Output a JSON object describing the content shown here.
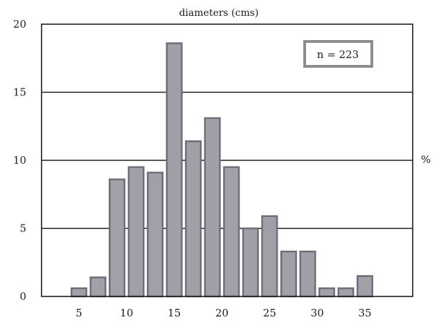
{
  "chart_data": {
    "type": "bar",
    "title": "diameters (cms)",
    "ylabel": "%",
    "xlabel": "",
    "annotation": "n = 223",
    "x_ticks": [
      5,
      10,
      15,
      20,
      25,
      30,
      35
    ],
    "y_ticks": [
      0,
      5,
      10,
      15,
      20
    ],
    "xlim": [
      0,
      40
    ],
    "ylim": [
      0,
      20
    ],
    "grid": true,
    "bar_color": "#a0a0a8",
    "bar_edge_color": "#6e6e76",
    "categories": [
      5,
      7,
      9,
      11,
      13,
      15,
      17,
      19,
      21,
      23,
      25,
      27,
      29,
      31,
      33,
      35
    ],
    "values": [
      0.6,
      1.4,
      8.6,
      9.5,
      9.1,
      18.6,
      11.4,
      13.1,
      9.5,
      5.0,
      5.9,
      3.3,
      3.3,
      0.6,
      0.6,
      1.5
    ]
  }
}
